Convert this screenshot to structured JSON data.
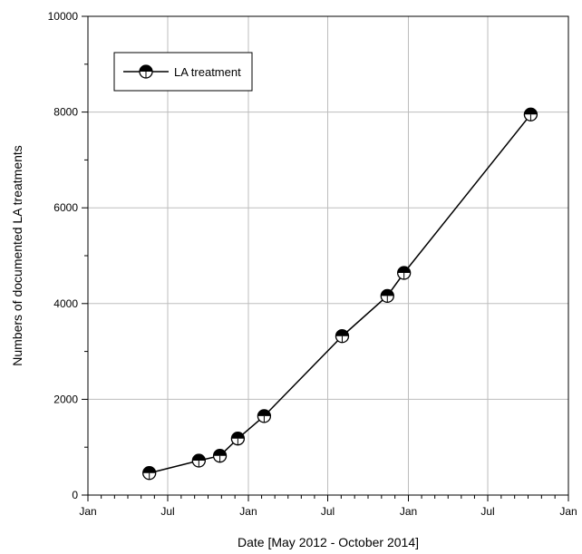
{
  "chart_data": {
    "type": "line",
    "xlabel": "Date [May 2012 - October 2014]",
    "ylabel": "Numbers of documented LA treatments",
    "x_axis": {
      "type": "date",
      "range": [
        "2012-01-01",
        "2015-01-01"
      ],
      "ticks": [
        {
          "date": "2012-01-01",
          "label": "Jan"
        },
        {
          "date": "2012-07-01",
          "label": "Jul"
        },
        {
          "date": "2013-01-01",
          "label": "Jan"
        },
        {
          "date": "2013-07-01",
          "label": "Jul"
        },
        {
          "date": "2014-01-01",
          "label": "Jan"
        },
        {
          "date": "2014-07-01",
          "label": "Jul"
        },
        {
          "date": "2015-01-01",
          "label": "Jan"
        }
      ],
      "minor_ticks_per_interval": 6
    },
    "y_axis": {
      "range": [
        0,
        10000
      ],
      "ticks": [
        0,
        2000,
        4000,
        6000,
        8000,
        10000
      ],
      "minor_step": 1000
    },
    "grid": true,
    "legend": {
      "placement": "top-left",
      "entries": [
        "LA treatment"
      ]
    },
    "series": [
      {
        "name": "LA treatment",
        "marker": "half-filled-circle",
        "color": "#000000",
        "points": [
          {
            "x": "2012-05-20",
            "y": 460
          },
          {
            "x": "2012-09-10",
            "y": 720
          },
          {
            "x": "2012-10-28",
            "y": 820
          },
          {
            "x": "2012-12-08",
            "y": 1180
          },
          {
            "x": "2013-02-06",
            "y": 1650
          },
          {
            "x": "2013-08-03",
            "y": 3320
          },
          {
            "x": "2013-11-14",
            "y": 4160
          },
          {
            "x": "2013-12-22",
            "y": 4640
          },
          {
            "x": "2014-10-07",
            "y": 7950
          }
        ]
      }
    ]
  }
}
